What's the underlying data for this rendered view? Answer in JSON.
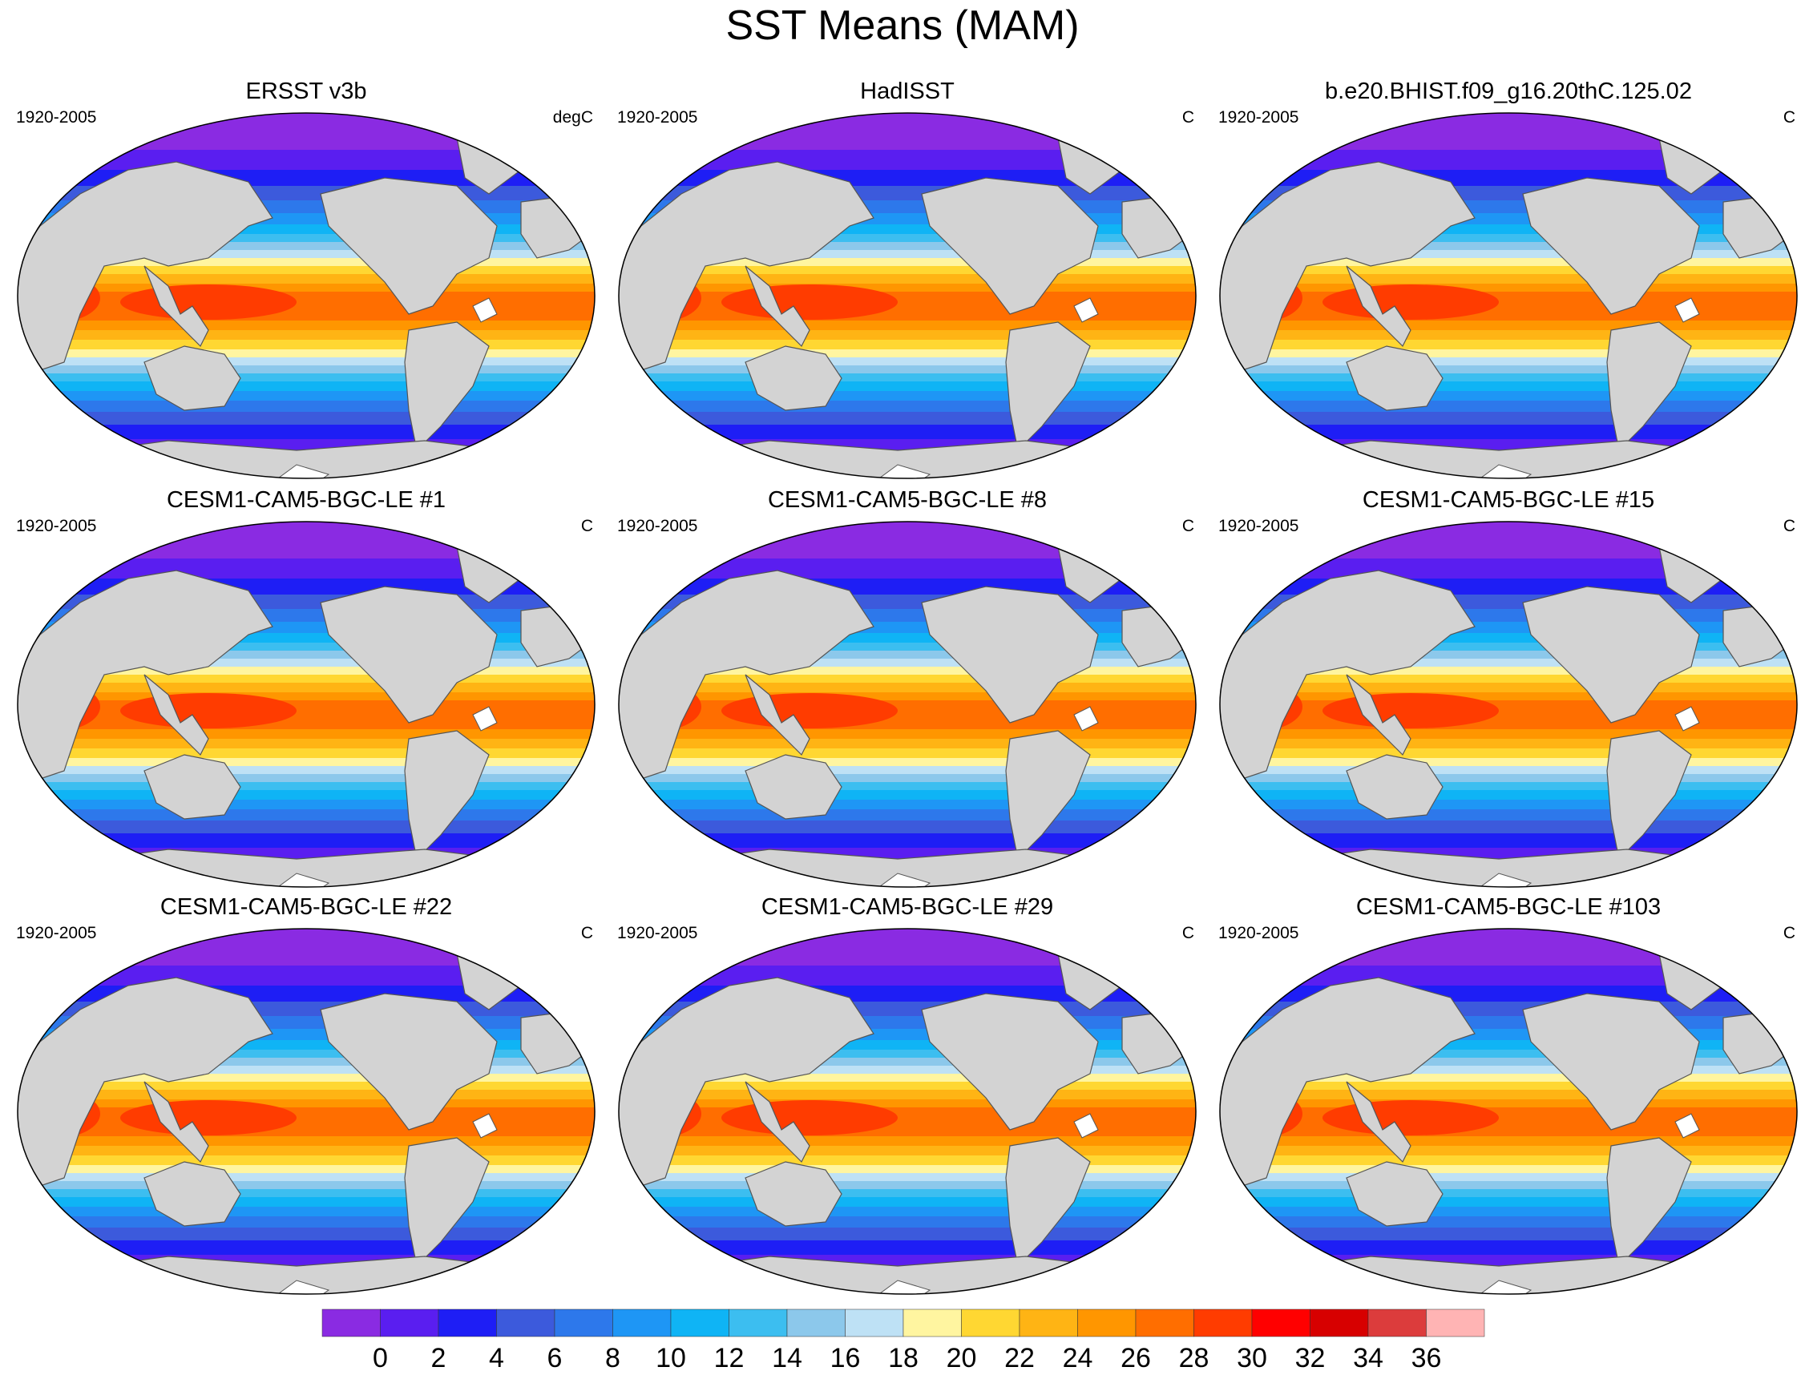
{
  "title": "SST Means (MAM)",
  "colors": {
    "land": "#d3d3d3",
    "ice": "#ffffff",
    "outline": "#555555"
  },
  "panels": [
    {
      "title": "ERSST v3b",
      "left_label": "1920-2005",
      "right_label": "degC"
    },
    {
      "title": "HadISST",
      "left_label": "1920-2005",
      "right_label": "C"
    },
    {
      "title": "b.e20.BHIST.f09_g16.20thC.125.02",
      "left_label": "1920-2005",
      "right_label": "C"
    },
    {
      "title": "CESM1-CAM5-BGC-LE #1",
      "left_label": "1920-2005",
      "right_label": "C"
    },
    {
      "title": "CESM1-CAM5-BGC-LE #8",
      "left_label": "1920-2005",
      "right_label": "C"
    },
    {
      "title": "CESM1-CAM5-BGC-LE #15",
      "left_label": "1920-2005",
      "right_label": "C"
    },
    {
      "title": "CESM1-CAM5-BGC-LE #22",
      "left_label": "1920-2005",
      "right_label": "C"
    },
    {
      "title": "CESM1-CAM5-BGC-LE #29",
      "left_label": "1920-2005",
      "right_label": "C"
    },
    {
      "title": "CESM1-CAM5-BGC-LE #103",
      "left_label": "1920-2005",
      "right_label": "C"
    }
  ],
  "colorbar": {
    "levels": [
      "0",
      "2",
      "4",
      "6",
      "8",
      "10",
      "12",
      "14",
      "16",
      "18",
      "20",
      "22",
      "24",
      "26",
      "28",
      "30",
      "32",
      "34",
      "36"
    ],
    "colors": [
      "#8a2be2",
      "#5a1ef0",
      "#1e1ef5",
      "#3c5adc",
      "#2d78eb",
      "#1e96f5",
      "#0fb4f5",
      "#3cbef0",
      "#8cc8eb",
      "#bee1f5",
      "#fff5a0",
      "#ffd732",
      "#ffb414",
      "#ff9600",
      "#ff6e00",
      "#ff3c00",
      "#ff0000",
      "#d70000",
      "#dc3c3c",
      "#ffb4b4"
    ]
  }
}
